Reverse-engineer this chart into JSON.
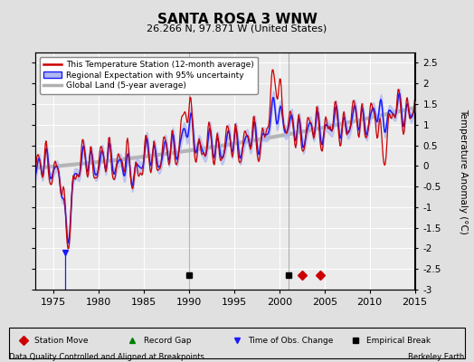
{
  "title": "SANTA ROSA 3 WNW",
  "subtitle": "26.266 N, 97.871 W (United States)",
  "ylabel": "Temperature Anomaly (°C)",
  "footer_left": "Data Quality Controlled and Aligned at Breakpoints",
  "footer_right": "Berkeley Earth",
  "xlim": [
    1973,
    2015
  ],
  "ylim": [
    -3.0,
    2.75
  ],
  "yticks": [
    -3,
    -2.5,
    -2,
    -1.5,
    -1,
    -0.5,
    0,
    0.5,
    1,
    1.5,
    2,
    2.5
  ],
  "ytick_labels": [
    "-3",
    "-2.5",
    "-2",
    "-1.5",
    "-1",
    "-0.5",
    "0",
    "0.5",
    "1",
    "1.5",
    "2",
    "2.5"
  ],
  "xticks": [
    1975,
    1980,
    1985,
    1990,
    1995,
    2000,
    2005,
    2010,
    2015
  ],
  "bg_color": "#e0e0e0",
  "plot_bg_color": "#ebebeb",
  "grid_color": "#ffffff",
  "station_color": "#cc0000",
  "regional_color": "#1a1aff",
  "regional_fill": "#b0b8f0",
  "global_color": "#b0b0b0",
  "marker_events": {
    "empirical_breaks": [
      1990.0,
      2001.0
    ],
    "station_moves": [
      2002.5,
      2004.5
    ],
    "time_obs_changes": [
      1976.3
    ]
  },
  "legend_labels": [
    "This Temperature Station (12-month average)",
    "Regional Expectation with 95% uncertainty",
    "Global Land (5-year average)"
  ]
}
